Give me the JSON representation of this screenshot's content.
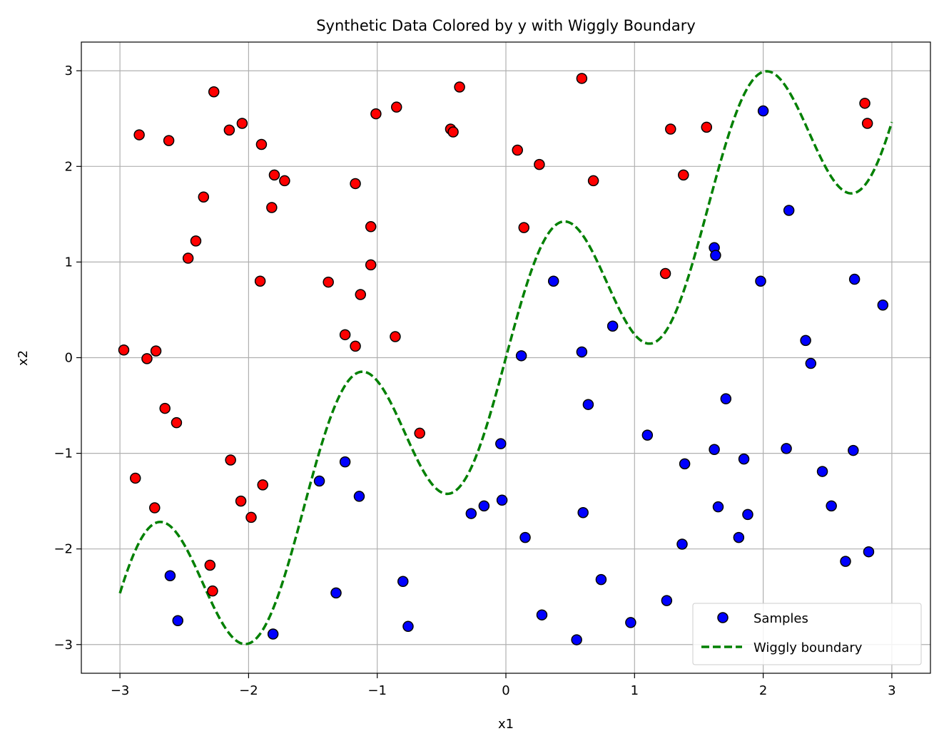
{
  "chart_data": {
    "type": "scatter",
    "title": "Synthetic Data Colored by y with Wiggly Boundary",
    "xlabel": "x1",
    "ylabel": "x2",
    "xlim": [
      -3.3,
      3.3
    ],
    "ylim": [
      -3.3,
      3.3
    ],
    "xticks": [
      -3,
      -2,
      -1,
      0,
      1,
      2,
      3
    ],
    "yticks": [
      -3,
      -2,
      -1,
      0,
      1,
      2,
      3
    ],
    "xtick_labels": [
      "−3",
      "−2",
      "−1",
      "0",
      "1",
      "2",
      "3"
    ],
    "ytick_labels": [
      "−3",
      "−2",
      "−1",
      "0",
      "1",
      "2",
      "3"
    ],
    "grid": true,
    "legend": {
      "position": "lower-right",
      "entries": [
        {
          "label": "Samples",
          "type": "marker"
        },
        {
          "label": "Wiggly boundary",
          "type": "dashed-line"
        }
      ]
    },
    "colors": {
      "class_0": "#0000ff",
      "class_1": "#ff0000",
      "boundary": "#008000",
      "grid": "#b0b0b0"
    },
    "series": [
      {
        "name": "Samples",
        "class_1_points": [
          [
            -2.97,
            0.08
          ],
          [
            -2.85,
            2.33
          ],
          [
            -2.62,
            2.27
          ],
          [
            -2.27,
            2.78
          ],
          [
            -2.15,
            2.38
          ],
          [
            -2.05,
            2.45
          ],
          [
            -1.9,
            2.23
          ],
          [
            -1.8,
            1.91
          ],
          [
            -1.72,
            1.85
          ],
          [
            -1.82,
            1.57
          ],
          [
            -2.35,
            1.68
          ],
          [
            -2.41,
            1.22
          ],
          [
            -2.47,
            1.04
          ],
          [
            -1.91,
            0.8
          ],
          [
            -2.79,
            -0.01
          ],
          [
            -2.72,
            0.07
          ],
          [
            -2.65,
            -0.53
          ],
          [
            -2.56,
            -0.68
          ],
          [
            -2.14,
            -1.07
          ],
          [
            -2.88,
            -1.26
          ],
          [
            -2.73,
            -1.57
          ],
          [
            -1.89,
            -1.33
          ],
          [
            -2.06,
            -1.5
          ],
          [
            -1.98,
            -1.67
          ],
          [
            -2.3,
            -2.17
          ],
          [
            -2.28,
            -2.44
          ],
          [
            -1.01,
            2.55
          ],
          [
            -0.85,
            2.62
          ],
          [
            -0.43,
            2.39
          ],
          [
            -0.41,
            2.36
          ],
          [
            -0.36,
            2.83
          ],
          [
            -1.17,
            1.82
          ],
          [
            -1.05,
            1.37
          ],
          [
            -1.05,
            0.97
          ],
          [
            -1.38,
            0.79
          ],
          [
            -1.13,
            0.66
          ],
          [
            -1.25,
            0.24
          ],
          [
            -1.17,
            0.12
          ],
          [
            -0.86,
            0.22
          ],
          [
            -0.67,
            -0.79
          ],
          [
            0.59,
            2.92
          ],
          [
            0.09,
            2.17
          ],
          [
            0.26,
            2.02
          ],
          [
            0.68,
            1.85
          ],
          [
            0.14,
            1.36
          ],
          [
            1.28,
            2.39
          ],
          [
            1.56,
            2.41
          ],
          [
            1.38,
            1.91
          ],
          [
            1.24,
            0.88
          ],
          [
            2.79,
            2.66
          ],
          [
            2.81,
            2.45
          ]
        ],
        "class_0_points": [
          [
            -2.61,
            -2.28
          ],
          [
            -2.55,
            -2.75
          ],
          [
            -1.81,
            -2.89
          ],
          [
            -1.45,
            -1.29
          ],
          [
            -1.25,
            -1.09
          ],
          [
            -1.14,
            -1.45
          ],
          [
            -1.32,
            -2.46
          ],
          [
            -0.8,
            -2.34
          ],
          [
            -0.76,
            -2.81
          ],
          [
            -0.27,
            -1.63
          ],
          [
            -0.17,
            -1.55
          ],
          [
            -0.04,
            -0.9
          ],
          [
            -0.03,
            -1.49
          ],
          [
            0.12,
            0.02
          ],
          [
            0.15,
            -1.88
          ],
          [
            0.28,
            -2.69
          ],
          [
            0.37,
            0.8
          ],
          [
            0.59,
            0.06
          ],
          [
            0.64,
            -0.49
          ],
          [
            0.6,
            -1.62
          ],
          [
            0.74,
            -2.32
          ],
          [
            0.55,
            -2.95
          ],
          [
            0.83,
            0.33
          ],
          [
            0.97,
            -2.77
          ],
          [
            1.1,
            -0.81
          ],
          [
            1.25,
            -2.54
          ],
          [
            1.39,
            -1.11
          ],
          [
            1.37,
            -1.95
          ],
          [
            1.62,
            1.15
          ],
          [
            1.63,
            1.07
          ],
          [
            1.62,
            -0.96
          ],
          [
            1.65,
            -1.56
          ],
          [
            1.71,
            -0.43
          ],
          [
            1.85,
            -1.06
          ],
          [
            1.88,
            -1.64
          ],
          [
            1.81,
            -1.88
          ],
          [
            1.98,
            0.8
          ],
          [
            2.0,
            2.58
          ],
          [
            2.2,
            1.54
          ],
          [
            2.18,
            -0.95
          ],
          [
            2.33,
            0.18
          ],
          [
            2.37,
            -0.06
          ],
          [
            2.46,
            -1.19
          ],
          [
            2.53,
            -1.55
          ],
          [
            2.64,
            -2.13
          ],
          [
            2.7,
            -0.97
          ],
          [
            2.71,
            0.82
          ],
          [
            2.82,
            -2.03
          ],
          [
            2.93,
            0.55
          ]
        ]
      },
      {
        "name": "Wiggly boundary",
        "x_range": [
          -3,
          3
        ],
        "formula": "x2 = x1 + sin(4 * x1)"
      }
    ]
  }
}
